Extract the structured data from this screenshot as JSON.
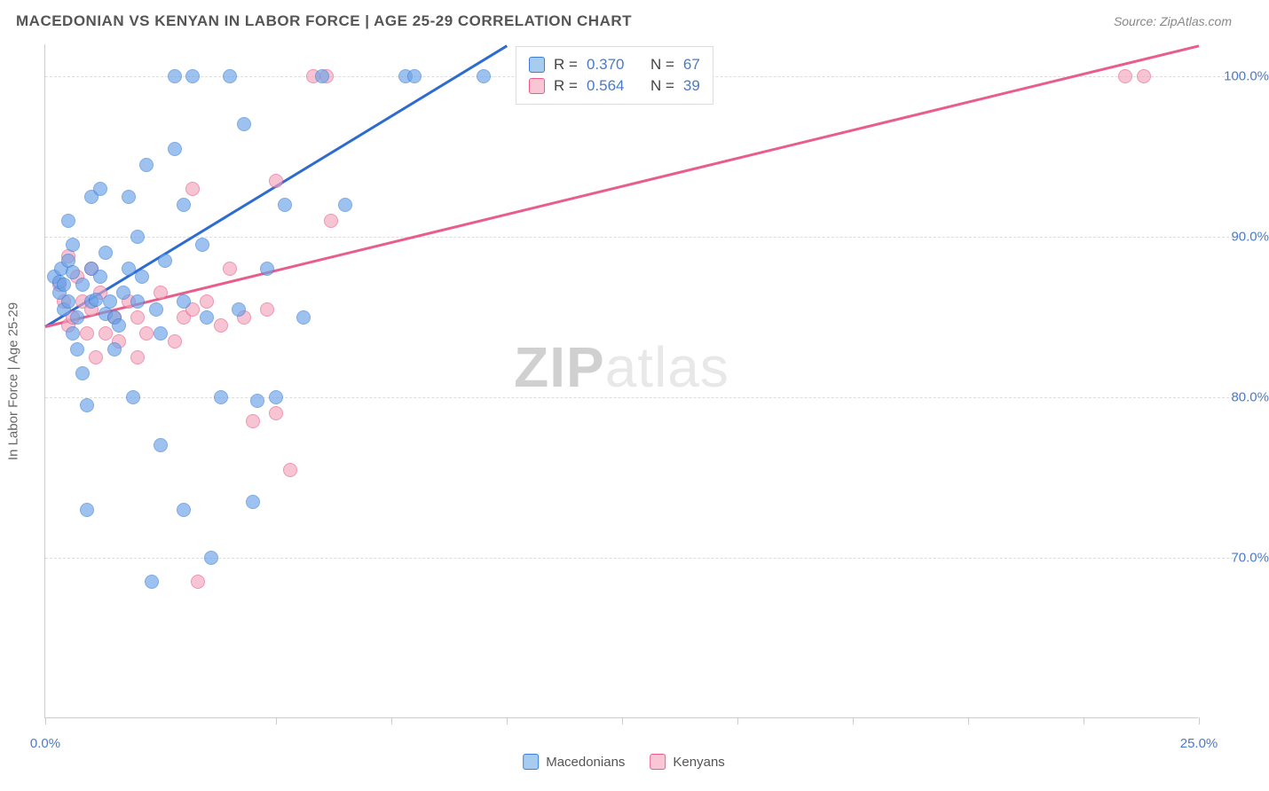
{
  "header": {
    "title": "MACEDONIAN VS KENYAN IN LABOR FORCE | AGE 25-29 CORRELATION CHART",
    "source": "Source: ZipAtlas.com"
  },
  "chart": {
    "type": "scatter",
    "xlim": [
      0,
      25
    ],
    "ylim": [
      60,
      102
    ],
    "x_tick_positions": [
      0,
      5,
      7.5,
      10,
      12.5,
      15,
      17.5,
      20,
      22.5,
      25
    ],
    "x_tick_labels": {
      "0": "0.0%",
      "25": "25.0%"
    },
    "y_gridlines": [
      70,
      80,
      90,
      100
    ],
    "y_tick_labels": {
      "70": "70.0%",
      "80": "80.0%",
      "90": "90.0%",
      "100": "100.0%"
    },
    "y_axis_label": "In Labor Force | Age 25-29",
    "background_color": "#ffffff",
    "grid_color": "#dddddd",
    "axis_color": "#cccccc",
    "marker_size": 16,
    "marker_opacity": 0.65,
    "series": {
      "macedonians": {
        "label": "Macedonians",
        "color_fill": "#6ba3e8",
        "color_stroke": "#3b7dd8",
        "r_value": "0.370",
        "n_value": "67",
        "trend_line": {
          "x1": 0,
          "y1": 84.5,
          "x2": 10,
          "y2": 102,
          "color": "#2e6bd0"
        },
        "points": [
          [
            0.2,
            87.5
          ],
          [
            0.3,
            86.5
          ],
          [
            0.3,
            87.2
          ],
          [
            0.35,
            88.0
          ],
          [
            0.4,
            85.5
          ],
          [
            0.4,
            87.0
          ],
          [
            0.5,
            86.0
          ],
          [
            0.5,
            88.5
          ],
          [
            0.5,
            91.0
          ],
          [
            0.6,
            84.0
          ],
          [
            0.6,
            87.8
          ],
          [
            0.6,
            89.5
          ],
          [
            0.7,
            83.0
          ],
          [
            0.7,
            85.0
          ],
          [
            0.8,
            81.5
          ],
          [
            0.8,
            87.0
          ],
          [
            0.9,
            79.5
          ],
          [
            0.9,
            73.0
          ],
          [
            1.0,
            86.0
          ],
          [
            1.0,
            88.0
          ],
          [
            1.0,
            92.5
          ],
          [
            1.1,
            86.1
          ],
          [
            1.2,
            93.0
          ],
          [
            1.2,
            87.5
          ],
          [
            1.3,
            85.2
          ],
          [
            1.3,
            89.0
          ],
          [
            1.4,
            86.0
          ],
          [
            1.5,
            85.0
          ],
          [
            1.5,
            83.0
          ],
          [
            1.6,
            84.5
          ],
          [
            1.7,
            86.5
          ],
          [
            1.8,
            88.0
          ],
          [
            1.8,
            92.5
          ],
          [
            1.9,
            80.0
          ],
          [
            2.0,
            86.0
          ],
          [
            2.0,
            90.0
          ],
          [
            2.1,
            87.5
          ],
          [
            2.2,
            94.5
          ],
          [
            2.3,
            68.5
          ],
          [
            2.4,
            85.5
          ],
          [
            2.5,
            84.0
          ],
          [
            2.5,
            77.0
          ],
          [
            2.6,
            88.5
          ],
          [
            2.8,
            95.5
          ],
          [
            2.8,
            100.0
          ],
          [
            3.0,
            73.0
          ],
          [
            3.0,
            86.0
          ],
          [
            3.0,
            92.0
          ],
          [
            3.2,
            100.0
          ],
          [
            3.4,
            89.5
          ],
          [
            3.5,
            85.0
          ],
          [
            3.6,
            70.0
          ],
          [
            3.8,
            80.0
          ],
          [
            4.0,
            100.0
          ],
          [
            4.2,
            85.5
          ],
          [
            4.3,
            97.0
          ],
          [
            4.5,
            73.5
          ],
          [
            4.6,
            79.8
          ],
          [
            4.8,
            88.0
          ],
          [
            5.0,
            80.0
          ],
          [
            5.2,
            92.0
          ],
          [
            5.6,
            85.0
          ],
          [
            6.0,
            100.0
          ],
          [
            6.5,
            92.0
          ],
          [
            7.8,
            100.0
          ],
          [
            8.0,
            100.0
          ],
          [
            9.5,
            100.0
          ]
        ]
      },
      "kenyans": {
        "label": "Kenyans",
        "color_fill": "#f4a6bd",
        "color_stroke": "#e85d8a",
        "r_value": "0.564",
        "n_value": "39",
        "trend_line": {
          "x1": 0,
          "y1": 84.5,
          "x2": 25,
          "y2": 102,
          "color": "#e85d8a"
        },
        "points": [
          [
            0.3,
            87.0
          ],
          [
            0.4,
            86.0
          ],
          [
            0.5,
            84.5
          ],
          [
            0.5,
            88.8
          ],
          [
            0.6,
            85.0
          ],
          [
            0.7,
            87.5
          ],
          [
            0.8,
            86.0
          ],
          [
            0.9,
            84.0
          ],
          [
            1.0,
            85.5
          ],
          [
            1.0,
            88.0
          ],
          [
            1.1,
            82.5
          ],
          [
            1.2,
            86.5
          ],
          [
            1.3,
            84.0
          ],
          [
            1.5,
            85.0
          ],
          [
            1.6,
            83.5
          ],
          [
            1.8,
            86.0
          ],
          [
            2.0,
            85.0
          ],
          [
            2.0,
            82.5
          ],
          [
            2.2,
            84.0
          ],
          [
            2.5,
            86.5
          ],
          [
            2.8,
            83.5
          ],
          [
            3.0,
            85.0
          ],
          [
            3.2,
            93.0
          ],
          [
            3.2,
            85.5
          ],
          [
            3.3,
            68.5
          ],
          [
            3.5,
            86.0
          ],
          [
            3.8,
            84.5
          ],
          [
            4.0,
            88.0
          ],
          [
            4.3,
            85.0
          ],
          [
            4.5,
            78.5
          ],
          [
            4.8,
            85.5
          ],
          [
            5.0,
            93.5
          ],
          [
            5.0,
            79.0
          ],
          [
            5.3,
            75.5
          ],
          [
            5.8,
            100.0
          ],
          [
            6.1,
            100.0
          ],
          [
            6.2,
            91.0
          ],
          [
            23.4,
            100.0
          ],
          [
            23.8,
            100.0
          ]
        ]
      }
    },
    "legend_stats": {
      "r_label": "R =",
      "n_label": "N ="
    },
    "watermark": {
      "zip": "ZIP",
      "atlas": "atlas"
    }
  },
  "bottom_legend": {
    "items": [
      {
        "key": "macedonians",
        "label": "Macedonians"
      },
      {
        "key": "kenyans",
        "label": "Kenyans"
      }
    ]
  }
}
